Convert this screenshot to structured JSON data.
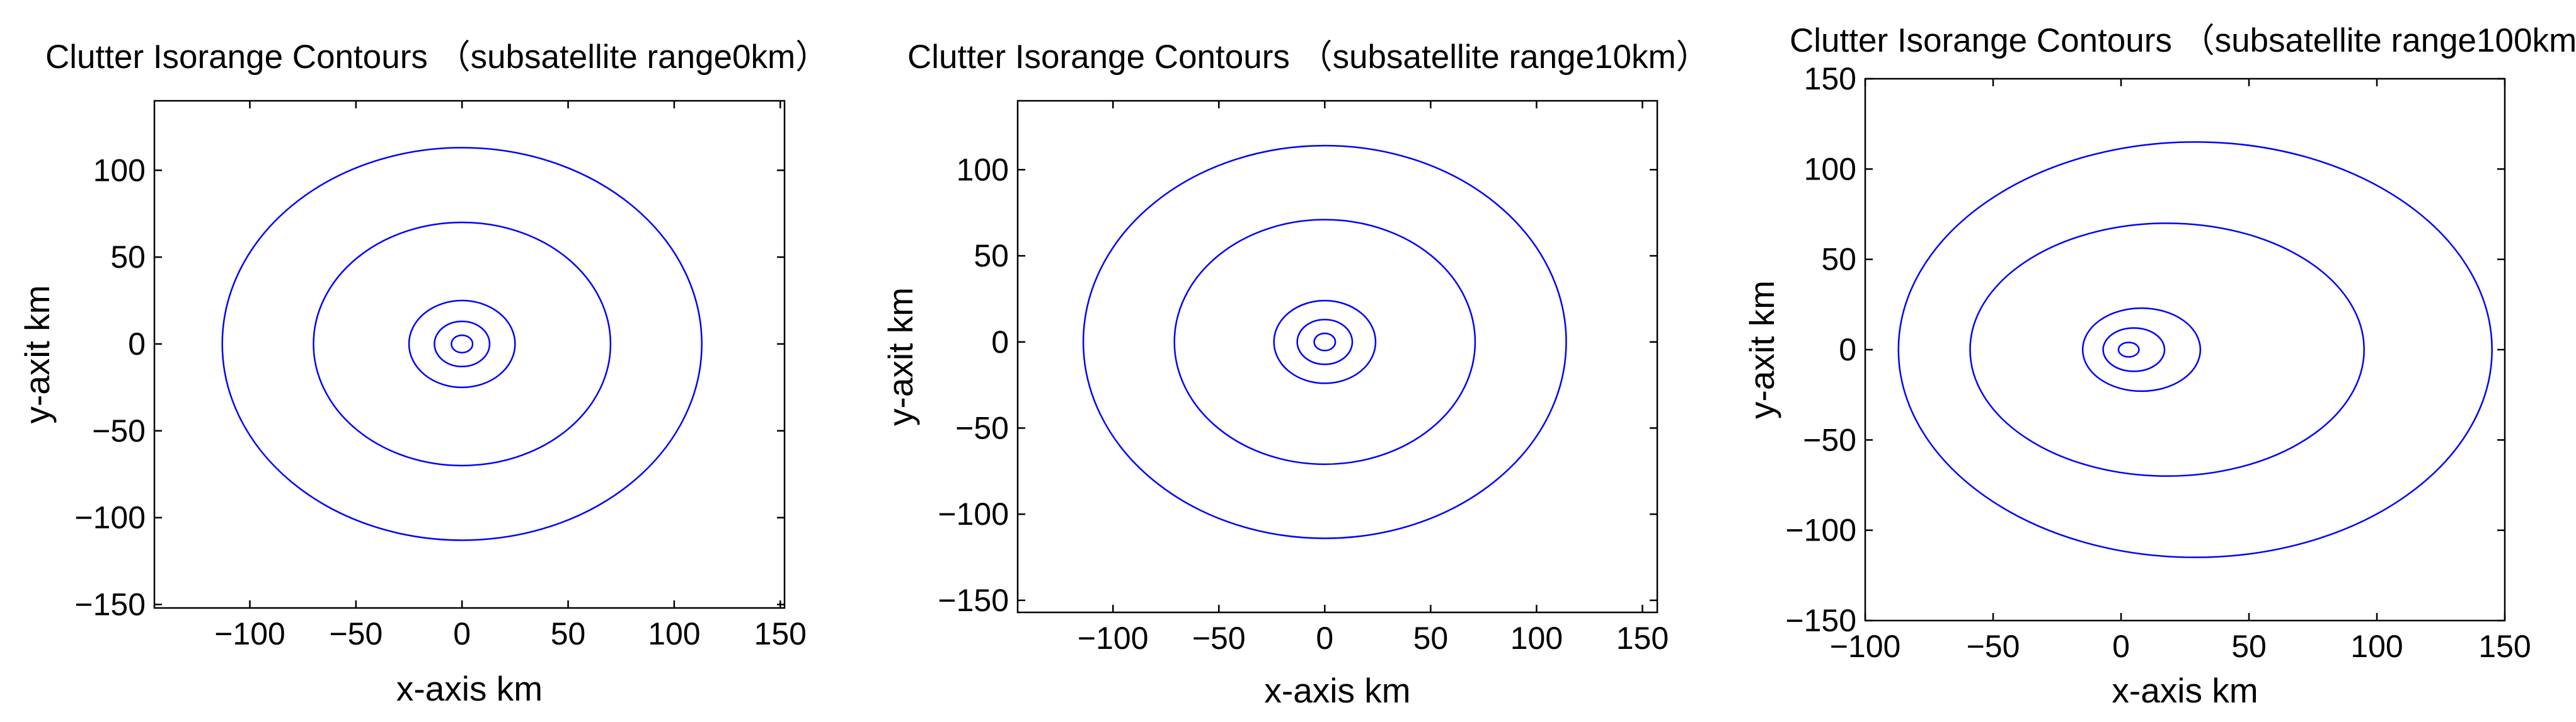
{
  "chart_data": [
    {
      "type": "line",
      "title": "Clutter Isorange Contours （subsatellite range0km）",
      "xlabel": "x-axis km",
      "ylabel": "y-axit km",
      "xlim": [
        -145,
        152
      ],
      "ylim": [
        -152,
        140
      ],
      "xticks": [
        -100,
        -50,
        0,
        50,
        100,
        150
      ],
      "yticks": [
        -150,
        -100,
        -50,
        0,
        50,
        100
      ],
      "xtick_labels": [
        "−100",
        "−50",
        "0",
        "50",
        "100",
        "150"
      ],
      "ytick_labels": [
        "−150",
        "−100",
        "−50",
        "0",
        "50",
        "100"
      ],
      "grid": false,
      "contours": [
        {
          "cx": 0,
          "cy": 0,
          "rx": 5,
          "ry": 5
        },
        {
          "cx": 0,
          "cy": 0,
          "rx": 13,
          "ry": 13
        },
        {
          "cx": 0,
          "cy": 0,
          "rx": 25,
          "ry": 25
        },
        {
          "cx": 0,
          "cy": 0,
          "rx": 70,
          "ry": 70
        },
        {
          "cx": 0,
          "cy": 0,
          "rx": 113,
          "ry": 113
        }
      ]
    },
    {
      "type": "line",
      "title": "Clutter Isorange Contours （subsatellite range10km）",
      "xlabel": "x-axis km",
      "ylabel": "y-axit km",
      "xlim": [
        -145,
        157
      ],
      "ylim": [
        -157,
        140
      ],
      "xticks": [
        -100,
        -50,
        0,
        50,
        100,
        150
      ],
      "yticks": [
        -150,
        -100,
        -50,
        0,
        50,
        100
      ],
      "xtick_labels": [
        "−100",
        "−50",
        "0",
        "50",
        "100",
        "150"
      ],
      "ytick_labels": [
        "−150",
        "−100",
        "−50",
        "0",
        "50",
        "100"
      ],
      "grid": false,
      "contours": [
        {
          "cx": 0,
          "cy": 0,
          "rx": 5,
          "ry": 5
        },
        {
          "cx": 0,
          "cy": 0,
          "rx": 13,
          "ry": 13
        },
        {
          "cx": 0,
          "cy": 0,
          "rx": 24,
          "ry": 24
        },
        {
          "cx": 0,
          "cy": 0,
          "rx": 71,
          "ry": 71
        },
        {
          "cx": 0,
          "cy": 0,
          "rx": 114,
          "ry": 114
        }
      ]
    },
    {
      "type": "line",
      "title": "Clutter Isorange Contours （subsatellite range100km）",
      "xlabel": "x-axis km",
      "ylabel": "y-axit km",
      "xlim": [
        -100,
        150
      ],
      "ylim": [
        -150,
        150
      ],
      "xticks": [
        -100,
        -50,
        0,
        50,
        100,
        150
      ],
      "yticks": [
        -150,
        -100,
        -50,
        0,
        50,
        100,
        150
      ],
      "xtick_labels": [
        "−100",
        "−50",
        "0",
        "50",
        "100",
        "150"
      ],
      "ytick_labels": [
        "−150",
        "−100",
        "−50",
        "0",
        "50",
        "100",
        "150"
      ],
      "grid": false,
      "contours": [
        {
          "cx": 3,
          "cy": 0,
          "rx": 4,
          "ry": 4
        },
        {
          "cx": 5,
          "cy": 0,
          "rx": 12,
          "ry": 12
        },
        {
          "cx": 8,
          "cy": 0,
          "rx": 23,
          "ry": 23
        },
        {
          "cx": 18,
          "cy": 0,
          "rx": 77,
          "ry": 70
        },
        {
          "cx": 29,
          "cy": 0,
          "rx": 116,
          "ry": 115
        }
      ]
    }
  ],
  "colors": {
    "contour": "#0000ff",
    "axes": "#000000",
    "background": "#ffffff"
  }
}
